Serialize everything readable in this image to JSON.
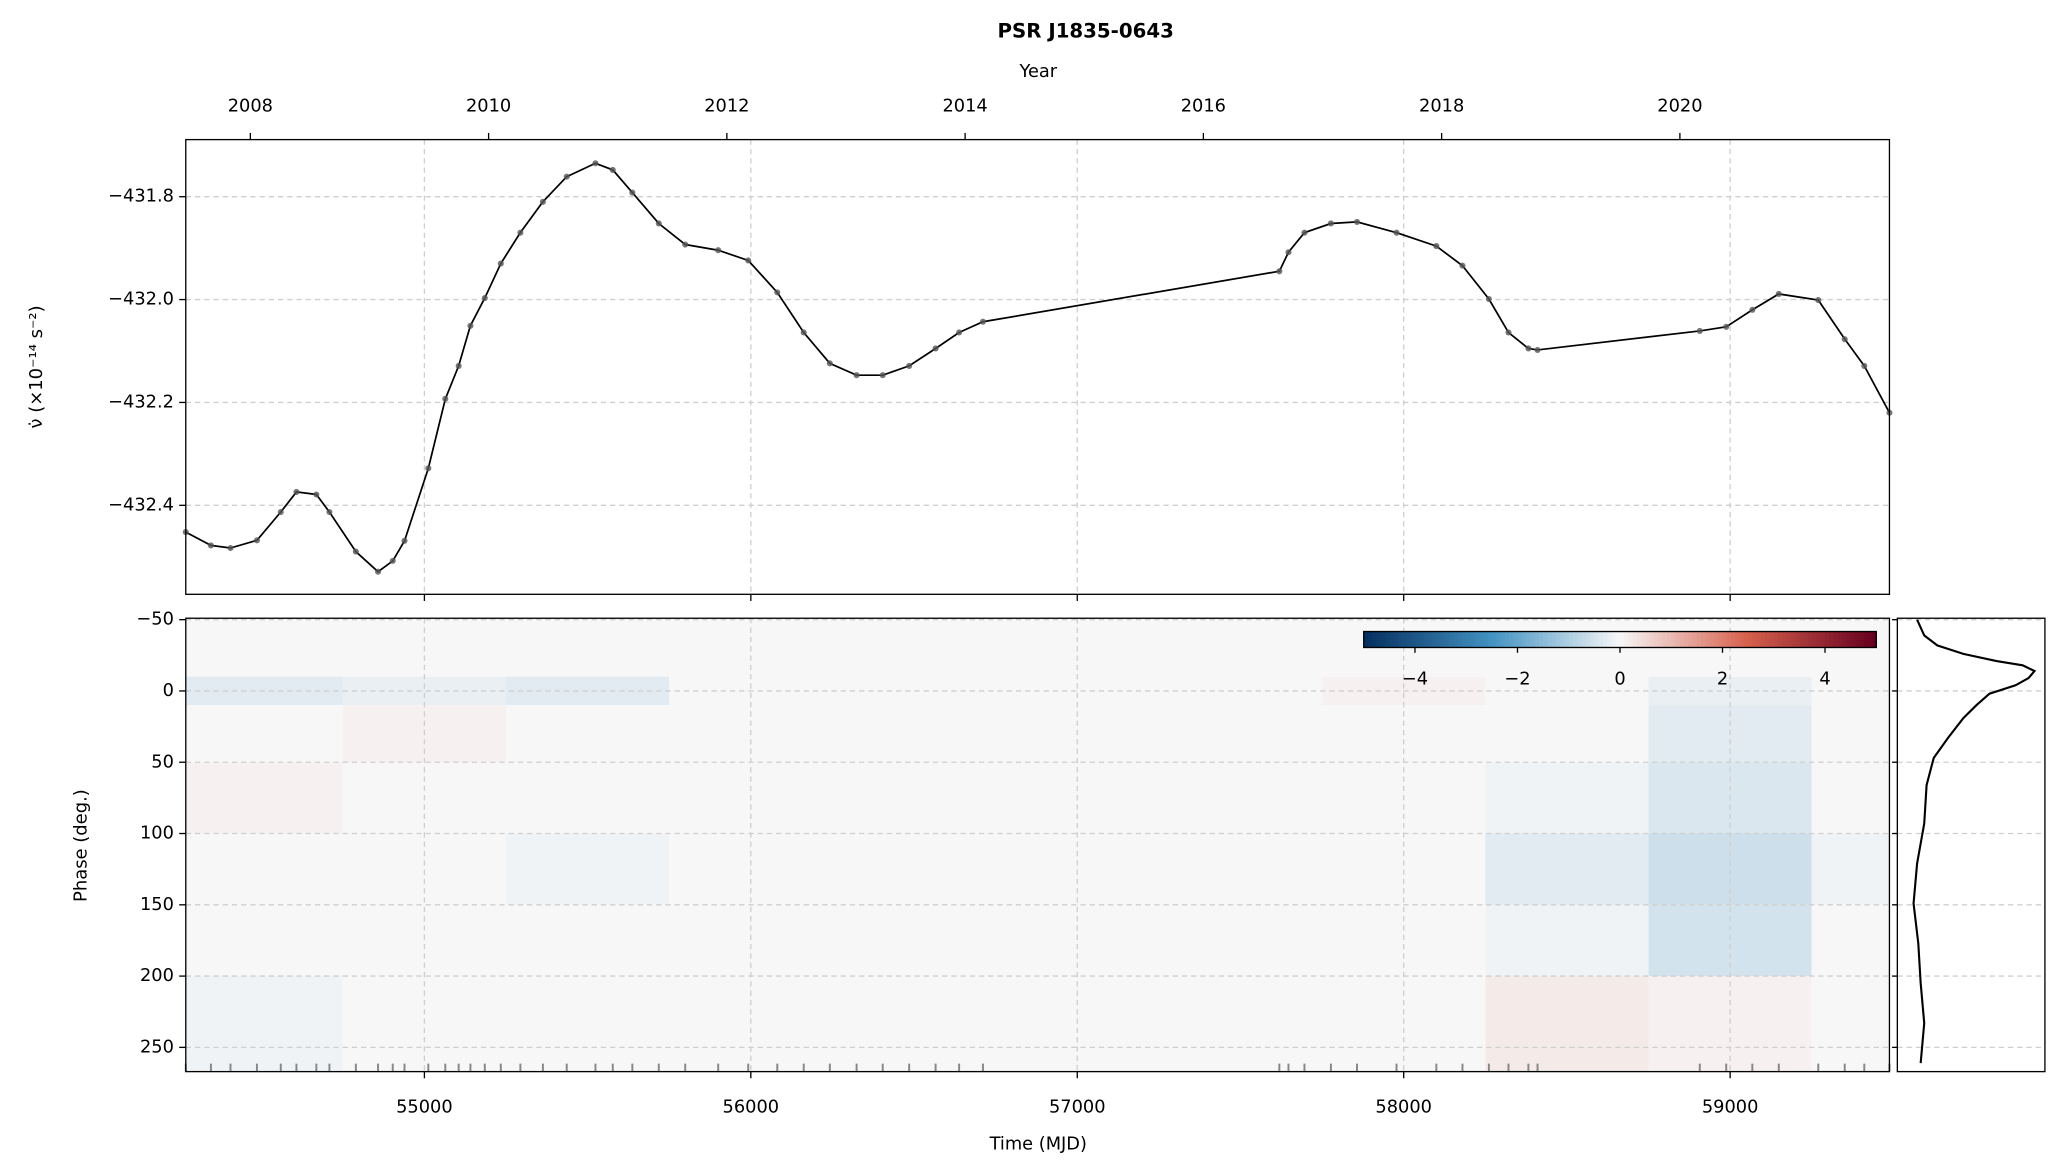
{
  "chart_data": [
    {
      "type": "line",
      "title": "PSR J1835-0643",
      "x2label": "Year",
      "ylabel": "ν̇ (×10⁻¹⁴ s⁻²)",
      "color": "#000000",
      "marker_color": "#555555",
      "xlim": [
        54269,
        59488
      ],
      "x2lim": [
        2007.458,
        2021.759
      ],
      "x2ticks": [
        2008,
        2010,
        2012,
        2014,
        2016,
        2018,
        2020
      ],
      "ylim": [
        -432.573,
        -431.689
      ],
      "yticks": [
        {
          "value": -431.8,
          "label": "−431.8"
        },
        {
          "value": -432.0,
          "label": "−432.0"
        },
        {
          "value": -432.2,
          "label": "−432.2"
        },
        {
          "value": -432.4,
          "label": "−432.4"
        }
      ],
      "grid": true,
      "x": [
        54269,
        54346,
        54406,
        54487,
        54560,
        54608,
        54669,
        54709,
        54790,
        54858,
        54903,
        54939,
        55012,
        55064,
        55105,
        55141,
        55185,
        55234,
        55294,
        55363,
        55436,
        55524,
        55577,
        55637,
        55718,
        55799,
        55900,
        55992,
        56081,
        56162,
        56242,
        56324,
        56404,
        56485,
        56566,
        56638,
        56711,
        57619,
        57647,
        57696,
        57777,
        57857,
        57978,
        58100,
        58180,
        58261,
        58321,
        58382,
        58410,
        58907,
        58988,
        59068,
        59149,
        59270,
        59351,
        59411,
        59488
      ],
      "values": [
        -432.452,
        -432.478,
        -432.483,
        -432.468,
        -432.413,
        -432.374,
        -432.379,
        -432.413,
        -432.49,
        -432.529,
        -432.508,
        -432.469,
        -432.328,
        -432.193,
        -432.129,
        -432.051,
        -431.997,
        -431.93,
        -431.87,
        -431.81,
        -431.761,
        -431.735,
        -431.748,
        -431.792,
        -431.852,
        -431.893,
        -431.904,
        -431.924,
        -431.986,
        -432.064,
        -432.124,
        -432.147,
        -432.147,
        -432.129,
        -432.095,
        -432.064,
        -432.043,
        -431.945,
        -431.908,
        -431.87,
        -431.852,
        -431.849,
        -431.87,
        -431.896,
        -431.934,
        -431.999,
        -432.064,
        -432.095,
        -432.098,
        -432.061,
        -432.053,
        -432.02,
        -431.989,
        -432.001,
        -432.077,
        -432.129,
        -432.22
      ]
    },
    {
      "type": "heatmap",
      "xlabel": "Time (MJD)",
      "ylabel": "Phase (deg.)",
      "xlim": [
        54269,
        59488
      ],
      "xticks": [
        55000,
        56000,
        57000,
        58000,
        59000
      ],
      "ylim": [
        -51,
        267
      ],
      "y_inverted": true,
      "yticks": [
        {
          "value": -50,
          "label": "−50"
        },
        0,
        50,
        100,
        150,
        200,
        250
      ],
      "grid": true,
      "xbins": [
        54269,
        54750,
        55250,
        55750,
        56250,
        56750,
        57250,
        57750,
        58250,
        58750,
        59250,
        59488
      ],
      "ybins": [
        -51,
        -10,
        10,
        50,
        100,
        150,
        200,
        267
      ],
      "z": [
        [
          0,
          0,
          0,
          0,
          0,
          0,
          0,
          0,
          0,
          0,
          0
        ],
        [
          -0.3,
          -0.2,
          -0.3,
          0,
          0,
          0,
          0,
          0.1,
          0,
          -0.2,
          0
        ],
        [
          0,
          0.1,
          0,
          0,
          0,
          0,
          0,
          0,
          0,
          -0.3,
          0
        ],
        [
          0.1,
          0,
          0,
          0,
          0,
          0,
          0,
          0,
          -0.1,
          -0.4,
          0
        ],
        [
          0,
          0,
          -0.1,
          0,
          0,
          0,
          0,
          0,
          -0.3,
          -0.6,
          -0.1
        ],
        [
          0,
          0,
          0,
          0,
          0,
          0,
          0,
          0,
          -0.1,
          -0.5,
          0
        ],
        [
          -0.1,
          0,
          0,
          0,
          0,
          0,
          0,
          0,
          0.2,
          0.1,
          0
        ]
      ],
      "colorbar": {
        "lim": [
          -5,
          5
        ],
        "ticks": [
          {
            "value": -4,
            "label": "−4"
          },
          {
            "value": -2,
            "label": "−2"
          },
          0,
          2,
          4
        ]
      }
    },
    {
      "type": "profile",
      "color": "#000000",
      "xlim": [
        -0.167,
        1.078
      ],
      "phase": [
        -50,
        -39,
        -32,
        -26,
        -21,
        -18,
        -14,
        -9,
        -4,
        2,
        10,
        19,
        33,
        47,
        66,
        93,
        121,
        149,
        177,
        205,
        233,
        261
      ],
      "values": [
        0,
        0.06,
        0.17,
        0.39,
        0.67,
        0.89,
        0.99,
        0.94,
        0.83,
        0.61,
        0.5,
        0.39,
        0.26,
        0.14,
        0.08,
        0.06,
        0,
        -0.03,
        0.01,
        0.03,
        0.06,
        0.03
      ]
    }
  ]
}
